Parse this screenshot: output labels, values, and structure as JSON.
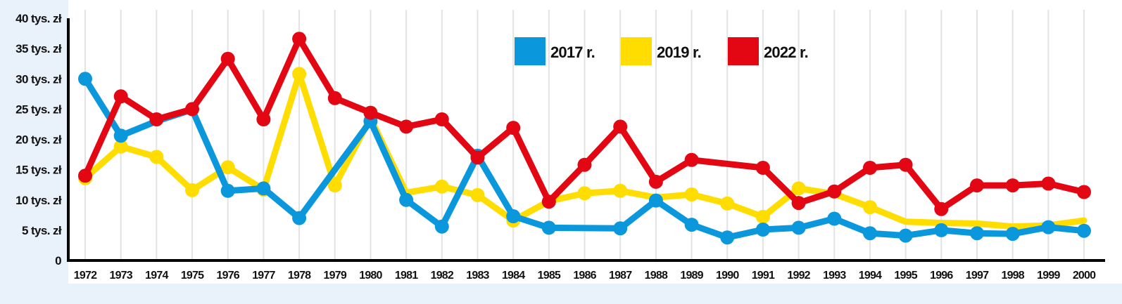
{
  "chart_data": {
    "type": "line",
    "title": "",
    "xlabel": "",
    "ylabel": "",
    "ylim": [
      0,
      40
    ],
    "grid": "vertical",
    "legend_position": "top",
    "yticks": [
      {
        "value": 0,
        "label": "0"
      },
      {
        "value": 5,
        "label": "5 tys. zł"
      },
      {
        "value": 10,
        "label": "10 tys. zł"
      },
      {
        "value": 15,
        "label": "15 tys. zł"
      },
      {
        "value": 20,
        "label": "20 tys. zł"
      },
      {
        "value": 25,
        "label": "25 tys. zł"
      },
      {
        "value": 30,
        "label": "30 tys. zł"
      },
      {
        "value": 35,
        "label": "35 tys. zł"
      },
      {
        "value": 40,
        "label": "40 tys. zł"
      }
    ],
    "categories": [
      "1972",
      "1973",
      "1974",
      "1975",
      "1976",
      "1977",
      "1978",
      "1979",
      "1980",
      "1981",
      "1982",
      "1983",
      "1984",
      "1985",
      "1986",
      "1987",
      "1988",
      "1989",
      "1990",
      "1991",
      "1992",
      "1993",
      "1994",
      "1995",
      "1996",
      "1997",
      "1998",
      "1999",
      "2000"
    ],
    "series": [
      {
        "name": "2019 r.",
        "color": "#ffdd00",
        "values": [
          13.6,
          18.8,
          17.1,
          11.6,
          15.4,
          11.7,
          30.8,
          12.4,
          23.5,
          11.2,
          12.2,
          10.8,
          6.6,
          9.8,
          11.1,
          11.5,
          10.4,
          10.9,
          9.4,
          7.2,
          11.9,
          11.0,
          8.8,
          6.4,
          6.2,
          6.1,
          5.6,
          5.8,
          6.6
        ],
        "markers": [
          true,
          true,
          true,
          true,
          true,
          true,
          true,
          true,
          false,
          false,
          true,
          true,
          true,
          false,
          true,
          true,
          false,
          true,
          true,
          true,
          true,
          false,
          true,
          false,
          false,
          false,
          false,
          false,
          false
        ]
      },
      {
        "name": "2017 r.",
        "color": "#0b97dc",
        "values": [
          30.0,
          20.6,
          23.0,
          24.9,
          11.5,
          11.9,
          7.0,
          15.0,
          23.0,
          10.0,
          5.6,
          17.3,
          7.3,
          5.4,
          null,
          5.3,
          9.9,
          5.9,
          3.8,
          5.1,
          5.4,
          6.9,
          4.5,
          4.1,
          5.0,
          4.5,
          4.4,
          5.5,
          4.9
        ],
        "markers": [
          true,
          true,
          false,
          false,
          true,
          true,
          true,
          false,
          true,
          true,
          true,
          true,
          true,
          true,
          false,
          true,
          true,
          true,
          true,
          true,
          true,
          true,
          true,
          true,
          true,
          true,
          true,
          true,
          true
        ]
      },
      {
        "name": "2022 r.",
        "color": "#e30613",
        "values": [
          14.0,
          27.1,
          23.3,
          25.0,
          33.3,
          23.3,
          36.6,
          26.8,
          24.4,
          22.1,
          23.3,
          17.0,
          21.9,
          9.7,
          15.8,
          22.1,
          13.0,
          16.6,
          null,
          15.3,
          9.5,
          11.4,
          15.3,
          15.8,
          8.5,
          12.4,
          12.4,
          12.7,
          11.3
        ],
        "markers": [
          true,
          true,
          true,
          true,
          true,
          true,
          true,
          true,
          true,
          true,
          true,
          true,
          true,
          true,
          true,
          true,
          true,
          true,
          false,
          true,
          true,
          true,
          true,
          true,
          true,
          true,
          true,
          true,
          true
        ]
      }
    ],
    "legend": [
      {
        "label": "2017 r.",
        "color": "#0b97dc"
      },
      {
        "label": "2019 r.",
        "color": "#ffdd00"
      },
      {
        "label": "2022 r.",
        "color": "#e30613"
      }
    ]
  }
}
